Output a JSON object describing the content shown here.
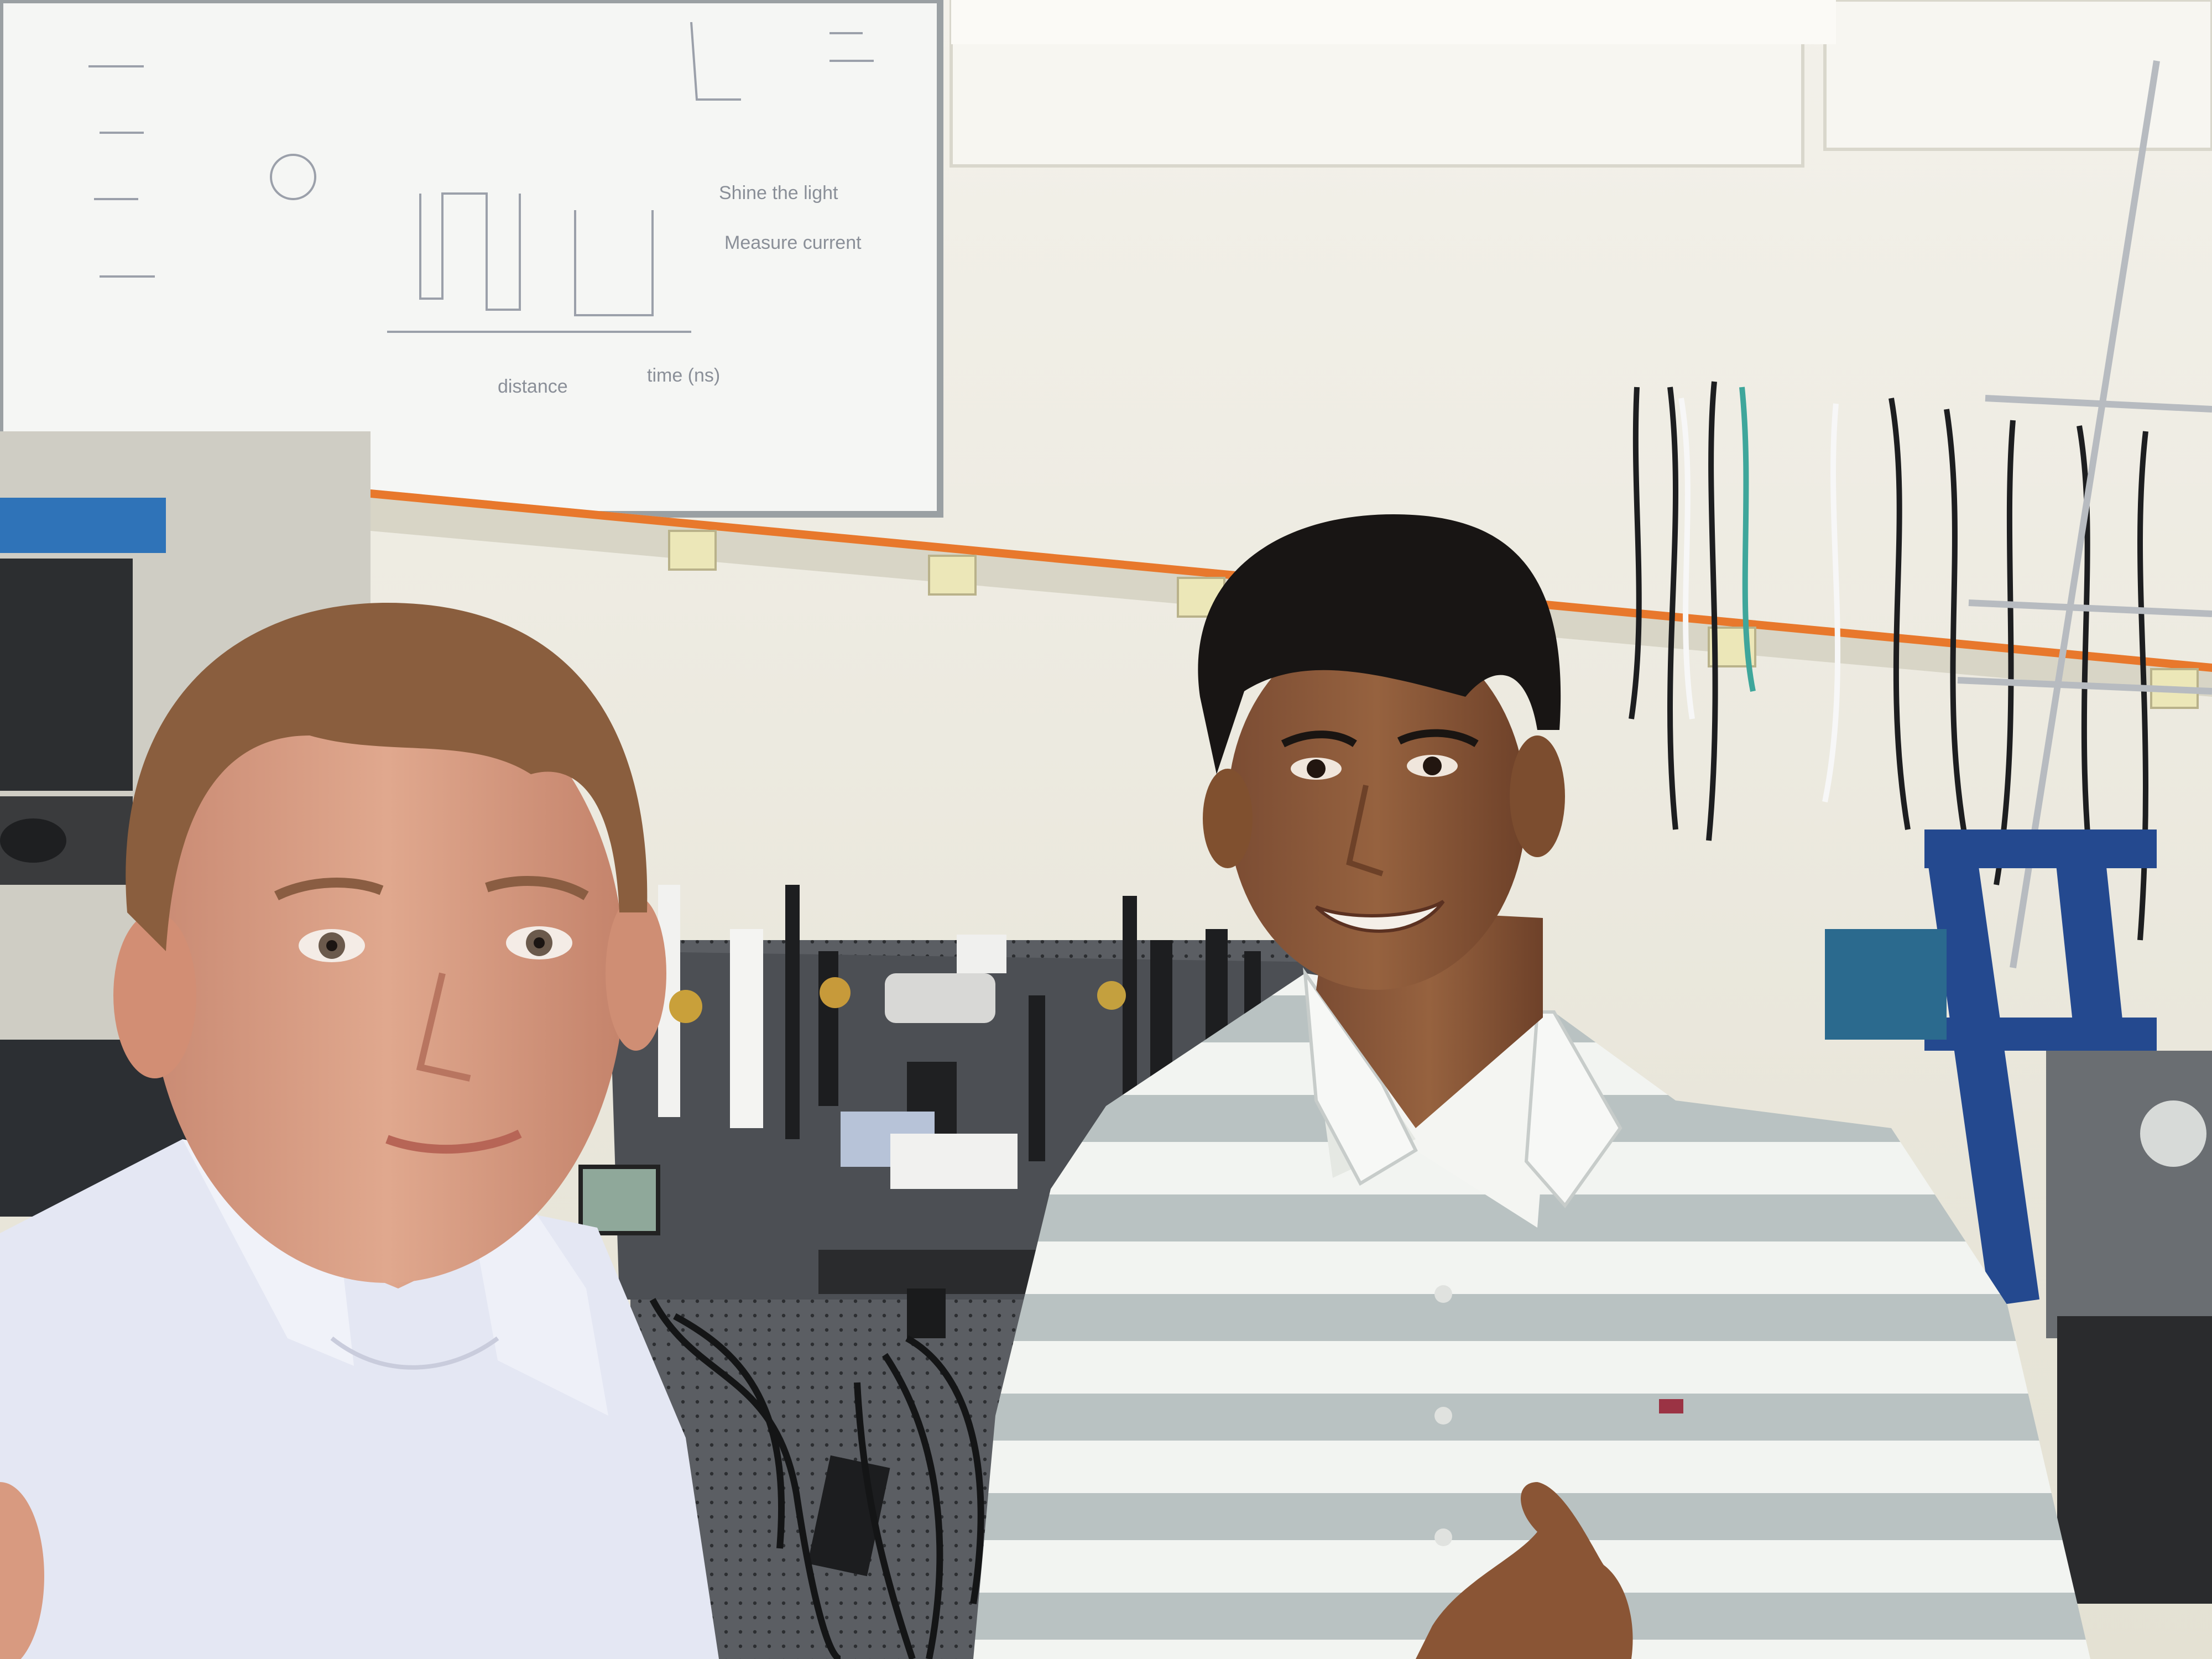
{
  "photo": {
    "kind": "selfie in an optics laboratory",
    "colors": {
      "wall": "#ece9dc",
      "ceiling": "#f3f1ea",
      "whiteboard": "#f5f6f4",
      "orange_trim": "#e8782c",
      "optical_table": "#54575c",
      "blue_frame": "#24498f",
      "shirt_left": "#e4e7f3",
      "shirt_stripe_gray": "#b9c2c2"
    },
    "whiteboard_notes": {
      "line_1": "Shine the light",
      "line_2": "Measure current",
      "line_3": "distance",
      "line_4": "time (ns)"
    }
  }
}
